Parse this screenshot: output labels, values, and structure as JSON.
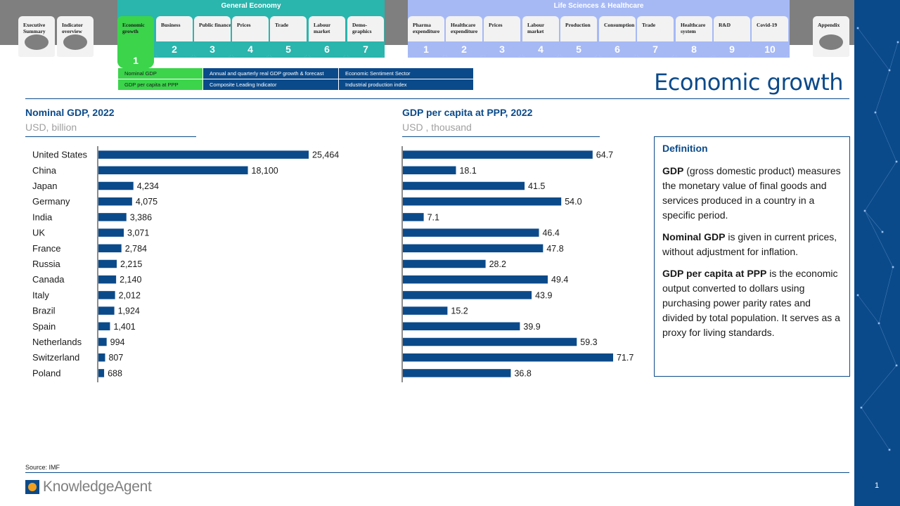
{
  "nav": {
    "groups": [
      {
        "id": "ge",
        "label": "General Economy"
      },
      {
        "id": "ls",
        "label": "Life Sciences & Healthcare"
      }
    ],
    "tabs": [
      {
        "label": "Executive Summary",
        "num": "",
        "group": "gray"
      },
      {
        "label": "Indicator overview",
        "num": "",
        "group": "gray"
      },
      {
        "label": "Economic growth",
        "num": "1",
        "group": "ge",
        "active": true
      },
      {
        "label": "Business",
        "num": "2",
        "group": "ge"
      },
      {
        "label": "Public finance",
        "num": "3",
        "group": "ge"
      },
      {
        "label": "Prices",
        "num": "4",
        "group": "ge"
      },
      {
        "label": "Trade",
        "num": "5",
        "group": "ge"
      },
      {
        "label": "Labour market",
        "num": "6",
        "group": "ge"
      },
      {
        "label": "Demo-graphics",
        "num": "7",
        "group": "ge"
      },
      {
        "label": "Pharma expenditure",
        "num": "1",
        "group": "ls"
      },
      {
        "label": "Healthcare expenditure",
        "num": "2",
        "group": "ls"
      },
      {
        "label": "Prices",
        "num": "3",
        "group": "ls"
      },
      {
        "label": "Labour market",
        "num": "4",
        "group": "ls"
      },
      {
        "label": "Production",
        "num": "5",
        "group": "ls"
      },
      {
        "label": "Consumption",
        "num": "6",
        "group": "ls"
      },
      {
        "label": "Trade",
        "num": "7",
        "group": "ls"
      },
      {
        "label": "Healthcare system",
        "num": "8",
        "group": "ls"
      },
      {
        "label": "R&D",
        "num": "9",
        "group": "ls"
      },
      {
        "label": "Covid-19",
        "num": "10",
        "group": "ls"
      },
      {
        "label": "Appendix",
        "num": "",
        "group": "gray"
      }
    ]
  },
  "subnav": [
    {
      "label": "Nominal GDP",
      "style": "green"
    },
    {
      "label": "Annual and quarterly real GDP growth & forecast",
      "style": "blue"
    },
    {
      "label": "Economic Sentiment Sector",
      "style": "blue"
    },
    {
      "label": "GDP per capita at PPP",
      "style": "green"
    },
    {
      "label": "Composite Leading Indicator",
      "style": "blue"
    },
    {
      "label": "Industrial production index",
      "style": "blue"
    }
  ],
  "page_title": "Economic growth",
  "chart_data": [
    {
      "type": "bar",
      "orientation": "horizontal",
      "title": "Nominal GDP, 2022",
      "unit": "USD, billion",
      "categories": [
        "United States",
        "China",
        "Japan",
        "Germany",
        "India",
        "UK",
        "France",
        "Russia",
        "Canada",
        "Italy",
        "Brazil",
        "Spain",
        "Netherlands",
        "Switzerland",
        "Poland"
      ],
      "values": [
        25464,
        18100,
        4234,
        4075,
        3386,
        3071,
        2784,
        2215,
        2140,
        2012,
        1924,
        1401,
        994,
        807,
        688
      ],
      "value_labels": [
        "25,464",
        "18,100",
        "4,234",
        "4,075",
        "3,386",
        "3,071",
        "2,784",
        "2,215",
        "2,140",
        "2,012",
        "1,924",
        "1,401",
        "994",
        "807",
        "688"
      ],
      "bar_color": "#0b4a8a",
      "xlim": [
        0,
        25464
      ]
    },
    {
      "type": "bar",
      "orientation": "horizontal",
      "title": "GDP per capita at PPP, 2022",
      "unit": "USD , thousand",
      "categories": [
        "United States",
        "China",
        "Japan",
        "Germany",
        "India",
        "UK",
        "France",
        "Russia",
        "Canada",
        "Italy",
        "Brazil",
        "Spain",
        "Netherlands",
        "Switzerland",
        "Poland"
      ],
      "values": [
        64.7,
        18.1,
        41.5,
        54.0,
        7.1,
        46.4,
        47.8,
        28.2,
        49.4,
        43.9,
        15.2,
        39.9,
        59.3,
        71.7,
        36.8
      ],
      "value_labels": [
        "64.7",
        "18.1",
        "41.5",
        "54.0",
        "7.1",
        "46.4",
        "47.8",
        "28.2",
        "49.4",
        "43.9",
        "15.2",
        "39.9",
        "59.3",
        "71.7",
        "36.8"
      ],
      "bar_color": "#0b4a8a",
      "xlim": [
        0,
        71.7
      ]
    }
  ],
  "definition": {
    "title": "Definition",
    "paragraphs": [
      {
        "term": "GDP",
        "text": " (gross domestic product) measures the monetary value of final goods and services produced in a country in a specific period."
      },
      {
        "term": "Nominal GDP",
        "text": "  is given in current prices, without adjustment for inflation."
      },
      {
        "term": "GDP per capita at PPP",
        "text": " is the economic output converted to dollars using purchasing power parity rates and divided by total population. It serves as a proxy for living standards."
      }
    ]
  },
  "source": "Source: IMF",
  "logo_text": "KnowledgeAgent",
  "page_number": "1",
  "colors": {
    "brand_blue": "#0b4a8a",
    "teal": "#2ab5ad",
    "lavender": "#a6b9f5",
    "active_green": "#3bd44b"
  }
}
